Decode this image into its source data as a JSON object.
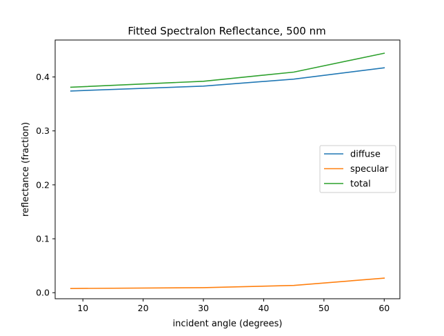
{
  "chart_data": {
    "type": "line",
    "title": "Fitted Spectralon Reflectance, 500 nm",
    "xlabel": "incident angle (degrees)",
    "ylabel": "reflectance (fraction)",
    "xlim": [
      5.4,
      62.6
    ],
    "ylim": [
      -0.0112,
      0.4685
    ],
    "xticks": [
      10,
      20,
      30,
      40,
      50,
      60
    ],
    "yticks": [
      0.0,
      0.1,
      0.2,
      0.3,
      0.4
    ],
    "ytick_labels": [
      "0.0",
      "0.1",
      "0.2",
      "0.3",
      "0.4"
    ],
    "grid": false,
    "legend_position": "center-right",
    "series": [
      {
        "name": "diffuse",
        "color": "#1f77b4",
        "x": [
          8,
          30,
          45,
          60
        ],
        "y": [
          0.374,
          0.383,
          0.396,
          0.417
        ]
      },
      {
        "name": "specular",
        "color": "#ff7f0e",
        "x": [
          8,
          30,
          45,
          60
        ],
        "y": [
          0.0078,
          0.0094,
          0.0135,
          0.027
        ]
      },
      {
        "name": "total",
        "color": "#2ca02c",
        "x": [
          8,
          30,
          45,
          60
        ],
        "y": [
          0.381,
          0.392,
          0.409,
          0.444
        ]
      }
    ]
  }
}
